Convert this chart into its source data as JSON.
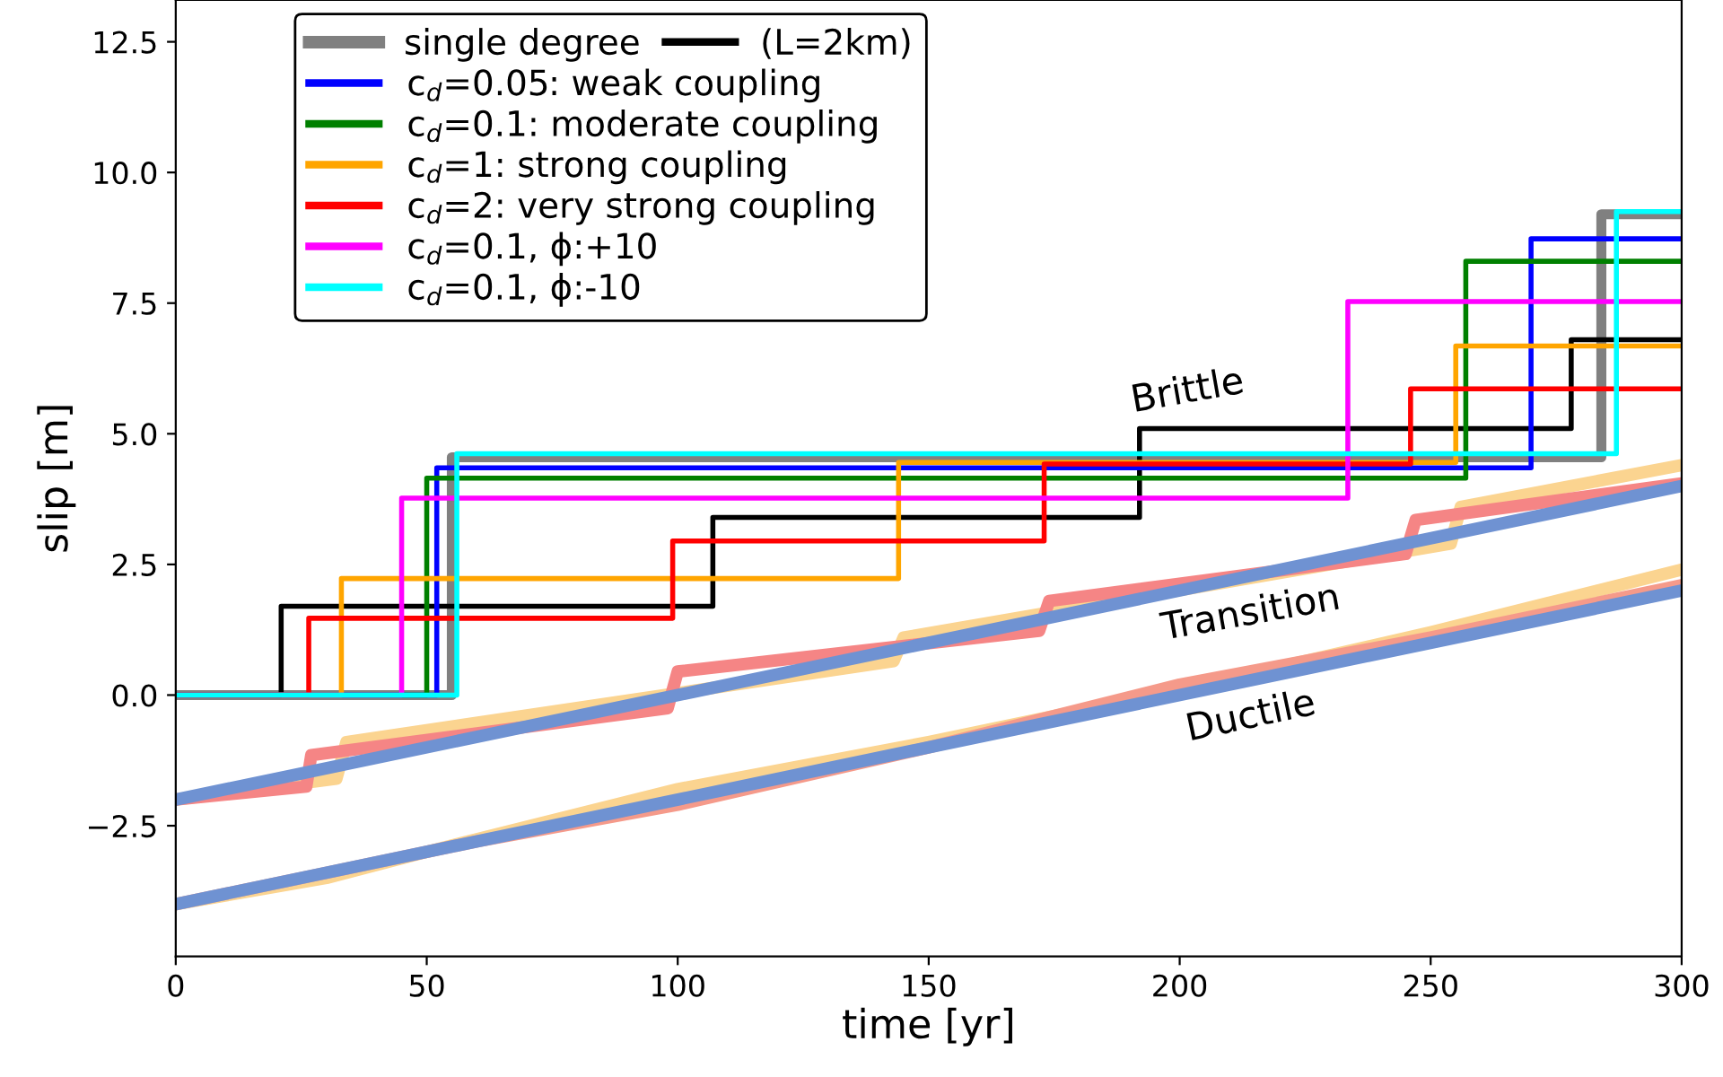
{
  "chart_data": {
    "type": "step",
    "xlabel": "time [yr]",
    "ylabel": "slip [m]",
    "xlim": [
      0,
      300
    ],
    "ylim": [
      -5,
      13.3
    ],
    "xticks": [
      0,
      50,
      100,
      150,
      200,
      250,
      300
    ],
    "yticks": [
      {
        "value": -2.5,
        "label": "−2.5"
      },
      {
        "value": 0,
        "label": "0.0"
      },
      2.5,
      {
        "value": 5,
        "label": "5.0"
      },
      7.5,
      {
        "value": 10,
        "label": "10.0"
      },
      12.5
    ],
    "grid": false,
    "legend": "top left",
    "series": [
      {
        "type": "line",
        "color": "#fbd490",
        "x": [
          0,
          30,
          50,
          100,
          150,
          200,
          250,
          300
        ],
        "values": [
          -4,
          -3.5,
          -3.0,
          -1.8,
          -0.9,
          0.1,
          1.2,
          2.4
        ]
      },
      {
        "type": "line",
        "color": "#f59a8a",
        "x": [
          0,
          30,
          60,
          100,
          150,
          175,
          200,
          250,
          300
        ],
        "values": [
          -4,
          -3.4,
          -2.8,
          -2.1,
          -1.0,
          -0.4,
          0.2,
          1.1,
          2.1
        ]
      },
      {
        "type": "line",
        "color": "#6f92d2",
        "x": [
          0,
          300
        ],
        "values": [
          -4,
          2.0
        ]
      },
      {
        "type": "line",
        "color": "#fbd490",
        "x": [
          0,
          32,
          34,
          143,
          145,
          254,
          256,
          300
        ],
        "values": [
          -2,
          -1.6,
          -0.9,
          0.65,
          1.1,
          2.9,
          3.6,
          4.4
        ]
      },
      {
        "type": "line",
        "color": "#f58585",
        "x": [
          0,
          26,
          27,
          98,
          100,
          172,
          174,
          245,
          247,
          300
        ],
        "values": [
          -2,
          -1.75,
          -1.15,
          -0.25,
          0.45,
          1.23,
          1.8,
          2.7,
          3.35,
          4.05
        ]
      },
      {
        "type": "line",
        "color": "#6f92d2",
        "x": [
          0,
          300
        ],
        "values": [
          -2,
          4.0
        ]
      },
      {
        "name": "single degree",
        "color": "#808080",
        "x": [
          0,
          55,
          284,
          300
        ],
        "values": [
          0,
          4.55,
          9.2,
          9.2
        ]
      },
      {
        "name": "(L=2km)",
        "color": "#000000",
        "x": [
          0,
          21,
          107,
          192,
          278,
          300
        ],
        "values": [
          0,
          1.7,
          3.4,
          5.1,
          6.8,
          6.8
        ]
      },
      {
        "name": "c$_{d}$=0.05: weak coupling",
        "color": "#0000ff",
        "x": [
          0,
          52,
          270,
          300
        ],
        "values": [
          0,
          4.35,
          8.73,
          8.73
        ]
      },
      {
        "name": "c$_{d}$=0.1: moderate coupling",
        "color": "#008000",
        "x": [
          0,
          50,
          257,
          300
        ],
        "values": [
          0,
          4.15,
          8.3,
          8.3
        ]
      },
      {
        "name": "c$_{d}$=1: strong coupling",
        "color": "#ffa500",
        "x": [
          0,
          33,
          144,
          255,
          300
        ],
        "values": [
          0,
          2.23,
          4.45,
          6.68,
          6.68
        ]
      },
      {
        "name": "c$_{d}$=2: very strong coupling",
        "color": "#ff0000",
        "x": [
          0,
          26.5,
          99,
          173,
          246,
          300
        ],
        "values": [
          0,
          1.47,
          2.95,
          4.42,
          5.86,
          5.86
        ]
      },
      {
        "name": "c$_{d}$=0.1, ϕ:+10",
        "color": "#ff00ff",
        "x": [
          0,
          45,
          233.5,
          300
        ],
        "values": [
          0,
          3.77,
          7.53,
          7.53
        ]
      },
      {
        "name": "c$_{d}$=0.1, ϕ:-10",
        "color": "#00ffff",
        "x": [
          0,
          56,
          287,
          300
        ],
        "values": [
          0,
          4.62,
          9.25,
          9.25
        ]
      }
    ],
    "annotations": [
      "Brittle",
      "Transition",
      "Ductile"
    ]
  }
}
